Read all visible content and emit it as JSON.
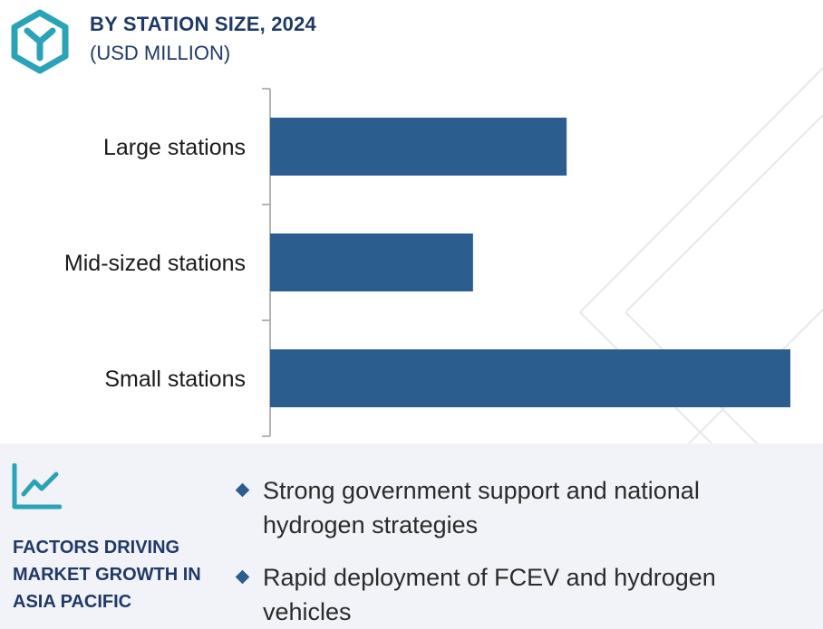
{
  "header": {
    "title": "BY STATION SIZE, 2024",
    "subtitle": "(USD MILLION)"
  },
  "colors": {
    "bar": "#2b5e8e",
    "heading": "#1f3a68",
    "accent": "#2aa3b8",
    "panel": "#f2f3f8"
  },
  "chart_data": {
    "type": "bar",
    "orientation": "horizontal",
    "title": "BY STATION SIZE, 2024",
    "subtitle": "(USD MILLION)",
    "xlabel": "",
    "ylabel": "",
    "categories": [
      "Large stations",
      "Mid-sized stations",
      "Small stations"
    ],
    "values": [
      57,
      39,
      100
    ],
    "xlim": [
      0,
      100
    ],
    "value_note": "relative bar lengths (no axis values shown)",
    "grid": false,
    "legend": "none"
  },
  "factors": {
    "heading": "FACTORS DRIVING MARKET GROWTH IN ASIA PACIFIC",
    "items": [
      "Strong government support and national hydrogen strategies",
      "Rapid deployment of FCEV and hydrogen vehicles"
    ]
  },
  "icons": {
    "logo": "hexagon-logo-icon",
    "trend": "trend-chart-icon",
    "bullet": "diamond-bullet-icon"
  }
}
